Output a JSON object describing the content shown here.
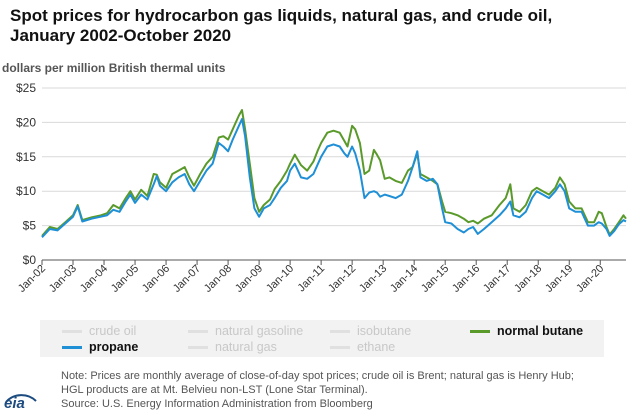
{
  "title_line1": "Spot prices for hydrocarbon gas liquids, natural gas, and crude oil,",
  "title_line2": "January 2002-October 2020",
  "units": "dollars per million British thermal units",
  "logo_text": "eia",
  "notes": [
    "Note: Prices are monthly average of close-of-day spot prices; crude oil is Brent; natural gas is Henry Hub;",
    "HGL products are at Mt. Belvieu non-LST (Lone Star Terminal).",
    "Source: U.S. Energy Information Administration from Bloomberg"
  ],
  "legend": [
    {
      "label": "crude oil",
      "color": "#e0e0e0",
      "active": false
    },
    {
      "label": "natural gasoline",
      "color": "#e0e0e0",
      "active": false
    },
    {
      "label": "isobutane",
      "color": "#e0e0e0",
      "active": false
    },
    {
      "label": "normal butane",
      "color": "#5a9a2b",
      "active": true
    },
    {
      "label": "propane",
      "color": "#1f8fd6",
      "active": true
    },
    {
      "label": "natural gas",
      "color": "#e0e0e0",
      "active": false
    },
    {
      "label": "ethane",
      "color": "#e0e0e0",
      "active": false
    }
  ],
  "chart_data": {
    "type": "line",
    "ylim": [
      0,
      25
    ],
    "yticks": [
      0,
      5,
      10,
      15,
      20,
      25
    ],
    "ytick_labels": [
      "$0",
      "$5",
      "$10",
      "$15",
      "$20",
      "$25"
    ],
    "xlim": [
      2002.0,
      2020.83
    ],
    "xticks": [
      2002,
      2003,
      2004,
      2005,
      2006,
      2007,
      2008,
      2009,
      2010,
      2011,
      2012,
      2013,
      2014,
      2015,
      2016,
      2017,
      2018,
      2019,
      2020
    ],
    "xtick_labels": [
      "Jan-02",
      "Jan-03",
      "Jan-04",
      "Jan-05",
      "Jan-06",
      "Jan-07",
      "Jan-08",
      "Jan-09",
      "Jan-10",
      "Jan-11",
      "Jan-12",
      "Jan-13",
      "Jan-14",
      "Jan-15",
      "Jan-16",
      "Jan-17",
      "Jan-18",
      "Jan-19",
      "Jan-20"
    ],
    "grid": "horizontal",
    "series": [
      {
        "name": "normal butane",
        "color": "#5a9a2b",
        "points": [
          [
            2002.0,
            3.5
          ],
          [
            2002.25,
            4.8
          ],
          [
            2002.5,
            4.5
          ],
          [
            2002.75,
            5.5
          ],
          [
            2003.0,
            6.5
          ],
          [
            2003.15,
            8.0
          ],
          [
            2003.3,
            5.8
          ],
          [
            2003.6,
            6.2
          ],
          [
            2003.9,
            6.5
          ],
          [
            2004.1,
            6.8
          ],
          [
            2004.3,
            8.0
          ],
          [
            2004.5,
            7.5
          ],
          [
            2004.7,
            9.0
          ],
          [
            2004.85,
            10.0
          ],
          [
            2005.0,
            8.8
          ],
          [
            2005.2,
            10.2
          ],
          [
            2005.4,
            9.3
          ],
          [
            2005.6,
            12.5
          ],
          [
            2005.7,
            12.4
          ],
          [
            2005.8,
            11.3
          ],
          [
            2006.0,
            10.5
          ],
          [
            2006.2,
            12.5
          ],
          [
            2006.4,
            13.0
          ],
          [
            2006.6,
            13.5
          ],
          [
            2006.75,
            12.0
          ],
          [
            2006.9,
            10.8
          ],
          [
            2007.1,
            12.5
          ],
          [
            2007.3,
            14.0
          ],
          [
            2007.5,
            15.0
          ],
          [
            2007.7,
            17.8
          ],
          [
            2007.85,
            18.0
          ],
          [
            2008.0,
            17.5
          ],
          [
            2008.15,
            19.0
          ],
          [
            2008.35,
            21.0
          ],
          [
            2008.45,
            21.8
          ],
          [
            2008.55,
            19.0
          ],
          [
            2008.7,
            14.0
          ],
          [
            2008.85,
            9.0
          ],
          [
            2009.0,
            7.0
          ],
          [
            2009.15,
            8.0
          ],
          [
            2009.35,
            8.8
          ],
          [
            2009.5,
            10.3
          ],
          [
            2009.7,
            11.5
          ],
          [
            2009.9,
            13.0
          ],
          [
            2010.0,
            14.0
          ],
          [
            2010.15,
            15.3
          ],
          [
            2010.35,
            13.8
          ],
          [
            2010.55,
            13.0
          ],
          [
            2010.75,
            14.3
          ],
          [
            2010.9,
            16.0
          ],
          [
            2011.0,
            17.0
          ],
          [
            2011.2,
            18.5
          ],
          [
            2011.4,
            18.8
          ],
          [
            2011.6,
            18.5
          ],
          [
            2011.75,
            17.3
          ],
          [
            2011.85,
            16.5
          ],
          [
            2012.0,
            19.5
          ],
          [
            2012.1,
            19.0
          ],
          [
            2012.25,
            17.0
          ],
          [
            2012.4,
            12.5
          ],
          [
            2012.55,
            13.0
          ],
          [
            2012.7,
            16.0
          ],
          [
            2012.8,
            15.3
          ],
          [
            2012.9,
            14.5
          ],
          [
            2013.05,
            11.8
          ],
          [
            2013.2,
            12.0
          ],
          [
            2013.4,
            11.5
          ],
          [
            2013.6,
            11.2
          ],
          [
            2013.8,
            13.0
          ],
          [
            2013.95,
            13.5
          ],
          [
            2014.1,
            15.5
          ],
          [
            2014.2,
            12.5
          ],
          [
            2014.4,
            12.0
          ],
          [
            2014.6,
            11.5
          ],
          [
            2014.75,
            11.0
          ],
          [
            2014.9,
            8.5
          ],
          [
            2015.0,
            7.0
          ],
          [
            2015.2,
            6.8
          ],
          [
            2015.4,
            6.5
          ],
          [
            2015.6,
            6.0
          ],
          [
            2015.75,
            5.5
          ],
          [
            2015.9,
            5.7
          ],
          [
            2016.05,
            5.3
          ],
          [
            2016.25,
            6.0
          ],
          [
            2016.5,
            6.5
          ],
          [
            2016.75,
            8.0
          ],
          [
            2016.95,
            9.0
          ],
          [
            2017.1,
            11.0
          ],
          [
            2017.2,
            7.5
          ],
          [
            2017.4,
            7.0
          ],
          [
            2017.6,
            8.0
          ],
          [
            2017.8,
            10.0
          ],
          [
            2017.95,
            10.5
          ],
          [
            2018.15,
            10.0
          ],
          [
            2018.35,
            9.5
          ],
          [
            2018.55,
            10.5
          ],
          [
            2018.7,
            12.0
          ],
          [
            2018.85,
            11.0
          ],
          [
            2019.0,
            8.5
          ],
          [
            2019.2,
            7.5
          ],
          [
            2019.4,
            7.5
          ],
          [
            2019.6,
            5.5
          ],
          [
            2019.8,
            5.5
          ],
          [
            2019.95,
            7.0
          ],
          [
            2020.05,
            6.8
          ],
          [
            2020.2,
            4.8
          ],
          [
            2020.3,
            3.7
          ],
          [
            2020.45,
            4.5
          ],
          [
            2020.6,
            5.5
          ],
          [
            2020.75,
            6.5
          ],
          [
            2020.83,
            6.0
          ]
        ]
      },
      {
        "name": "propane",
        "color": "#1f8fd6",
        "points": [
          [
            2002.0,
            3.3
          ],
          [
            2002.25,
            4.5
          ],
          [
            2002.5,
            4.3
          ],
          [
            2002.75,
            5.3
          ],
          [
            2003.0,
            6.3
          ],
          [
            2003.15,
            7.8
          ],
          [
            2003.3,
            5.6
          ],
          [
            2003.6,
            6.0
          ],
          [
            2003.9,
            6.3
          ],
          [
            2004.1,
            6.5
          ],
          [
            2004.3,
            7.3
          ],
          [
            2004.5,
            7.0
          ],
          [
            2004.7,
            8.5
          ],
          [
            2004.85,
            9.5
          ],
          [
            2005.0,
            8.3
          ],
          [
            2005.2,
            9.5
          ],
          [
            2005.4,
            8.8
          ],
          [
            2005.6,
            11.0
          ],
          [
            2005.7,
            12.2
          ],
          [
            2005.8,
            10.8
          ],
          [
            2006.0,
            10.0
          ],
          [
            2006.2,
            11.3
          ],
          [
            2006.4,
            12.0
          ],
          [
            2006.6,
            12.5
          ],
          [
            2006.75,
            11.0
          ],
          [
            2006.9,
            10.0
          ],
          [
            2007.1,
            11.5
          ],
          [
            2007.3,
            13.0
          ],
          [
            2007.5,
            14.0
          ],
          [
            2007.7,
            17.0
          ],
          [
            2007.85,
            16.5
          ],
          [
            2008.0,
            15.8
          ],
          [
            2008.15,
            17.5
          ],
          [
            2008.35,
            19.5
          ],
          [
            2008.45,
            20.5
          ],
          [
            2008.55,
            18.0
          ],
          [
            2008.7,
            12.0
          ],
          [
            2008.85,
            7.5
          ],
          [
            2009.0,
            6.3
          ],
          [
            2009.15,
            7.5
          ],
          [
            2009.35,
            8.0
          ],
          [
            2009.5,
            9.0
          ],
          [
            2009.7,
            10.5
          ],
          [
            2009.9,
            11.5
          ],
          [
            2010.0,
            13.0
          ],
          [
            2010.15,
            14.0
          ],
          [
            2010.35,
            12.0
          ],
          [
            2010.55,
            11.8
          ],
          [
            2010.75,
            12.5
          ],
          [
            2010.9,
            14.0
          ],
          [
            2011.0,
            15.0
          ],
          [
            2011.2,
            16.5
          ],
          [
            2011.4,
            16.8
          ],
          [
            2011.6,
            16.5
          ],
          [
            2011.75,
            15.5
          ],
          [
            2011.85,
            15.0
          ],
          [
            2012.0,
            16.5
          ],
          [
            2012.1,
            15.5
          ],
          [
            2012.25,
            13.0
          ],
          [
            2012.4,
            9.0
          ],
          [
            2012.55,
            9.8
          ],
          [
            2012.7,
            10.0
          ],
          [
            2012.8,
            9.8
          ],
          [
            2012.9,
            9.2
          ],
          [
            2013.05,
            9.5
          ],
          [
            2013.2,
            9.3
          ],
          [
            2013.4,
            9.0
          ],
          [
            2013.6,
            9.5
          ],
          [
            2013.8,
            11.5
          ],
          [
            2013.95,
            13.5
          ],
          [
            2014.1,
            15.8
          ],
          [
            2014.2,
            12.0
          ],
          [
            2014.4,
            11.5
          ],
          [
            2014.6,
            11.8
          ],
          [
            2014.75,
            11.0
          ],
          [
            2014.9,
            7.5
          ],
          [
            2015.0,
            5.5
          ],
          [
            2015.2,
            5.3
          ],
          [
            2015.4,
            4.5
          ],
          [
            2015.6,
            4.0
          ],
          [
            2015.75,
            4.5
          ],
          [
            2015.9,
            4.8
          ],
          [
            2016.05,
            3.8
          ],
          [
            2016.25,
            4.5
          ],
          [
            2016.5,
            5.5
          ],
          [
            2016.75,
            6.5
          ],
          [
            2016.95,
            7.5
          ],
          [
            2017.1,
            8.5
          ],
          [
            2017.2,
            6.5
          ],
          [
            2017.4,
            6.2
          ],
          [
            2017.6,
            7.0
          ],
          [
            2017.8,
            9.0
          ],
          [
            2017.95,
            10.0
          ],
          [
            2018.15,
            9.5
          ],
          [
            2018.35,
            9.0
          ],
          [
            2018.55,
            10.0
          ],
          [
            2018.7,
            11.0
          ],
          [
            2018.85,
            10.0
          ],
          [
            2019.0,
            7.5
          ],
          [
            2019.2,
            7.0
          ],
          [
            2019.4,
            7.0
          ],
          [
            2019.6,
            5.0
          ],
          [
            2019.8,
            5.0
          ],
          [
            2019.95,
            5.5
          ],
          [
            2020.05,
            5.3
          ],
          [
            2020.2,
            4.5
          ],
          [
            2020.3,
            3.5
          ],
          [
            2020.45,
            4.2
          ],
          [
            2020.6,
            5.2
          ],
          [
            2020.75,
            5.8
          ],
          [
            2020.83,
            5.6
          ]
        ]
      }
    ]
  }
}
